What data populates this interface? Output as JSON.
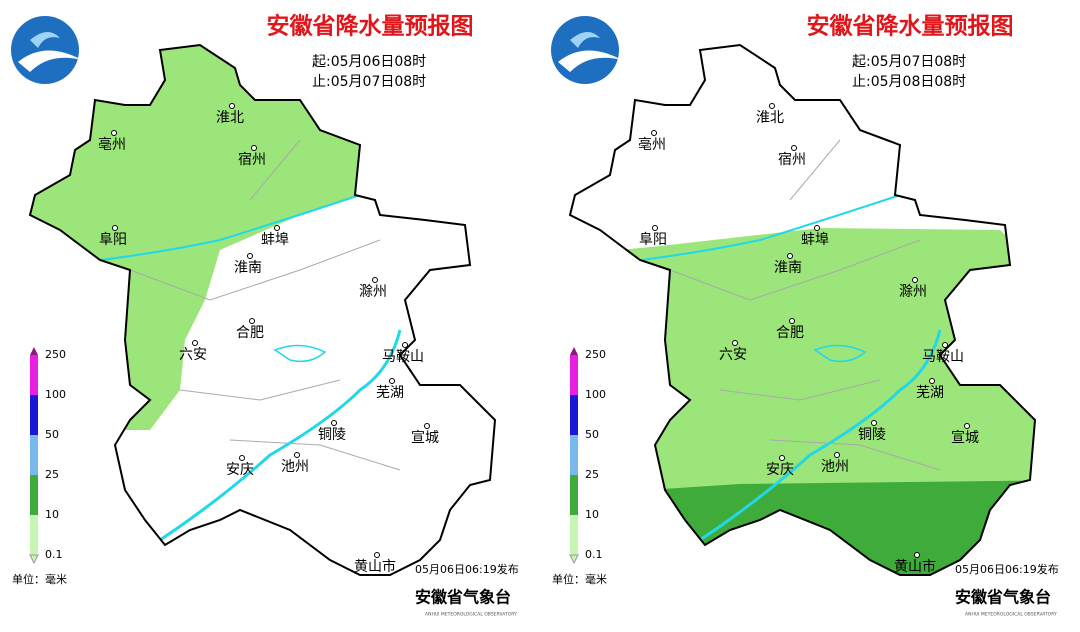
{
  "panels": [
    {
      "title": "安徽省降水量预报图",
      "start": "起:05月06日08时",
      "end": "止:05月07日08时",
      "cities": [
        "淮北",
        "亳州",
        "宿州",
        "阜阳",
        "蚌埠",
        "淮南",
        "滁州",
        "合肥",
        "六安",
        "马鞍山",
        "芜湖",
        "铜陵",
        "宣城",
        "安庆",
        "池州",
        "黄山市"
      ],
      "legend": [
        0.1,
        10,
        25,
        50,
        100,
        250
      ],
      "unit": "单位：毫米",
      "published": "05月06日06:19发布",
      "org": "安徽省气象台",
      "org_en": "ANHUI METEOROLOGICAL OBSERVATORY"
    },
    {
      "title": "安徽省降水量预报图",
      "start": "起:05月07日08时",
      "end": "止:05月08日08时",
      "cities": [
        "淮北",
        "亳州",
        "宿州",
        "阜阳",
        "蚌埠",
        "淮南",
        "滁州",
        "合肥",
        "六安",
        "马鞍山",
        "芜湖",
        "铜陵",
        "宣城",
        "安庆",
        "池州",
        "黄山市"
      ],
      "legend": [
        0.1,
        10,
        25,
        50,
        100,
        250
      ],
      "unit": "单位：毫米",
      "published": "05月06日06:19发布",
      "org": "安徽省气象台",
      "org_en": "ANHUI METEOROLOGICAL OBSERVATORY"
    }
  ]
}
